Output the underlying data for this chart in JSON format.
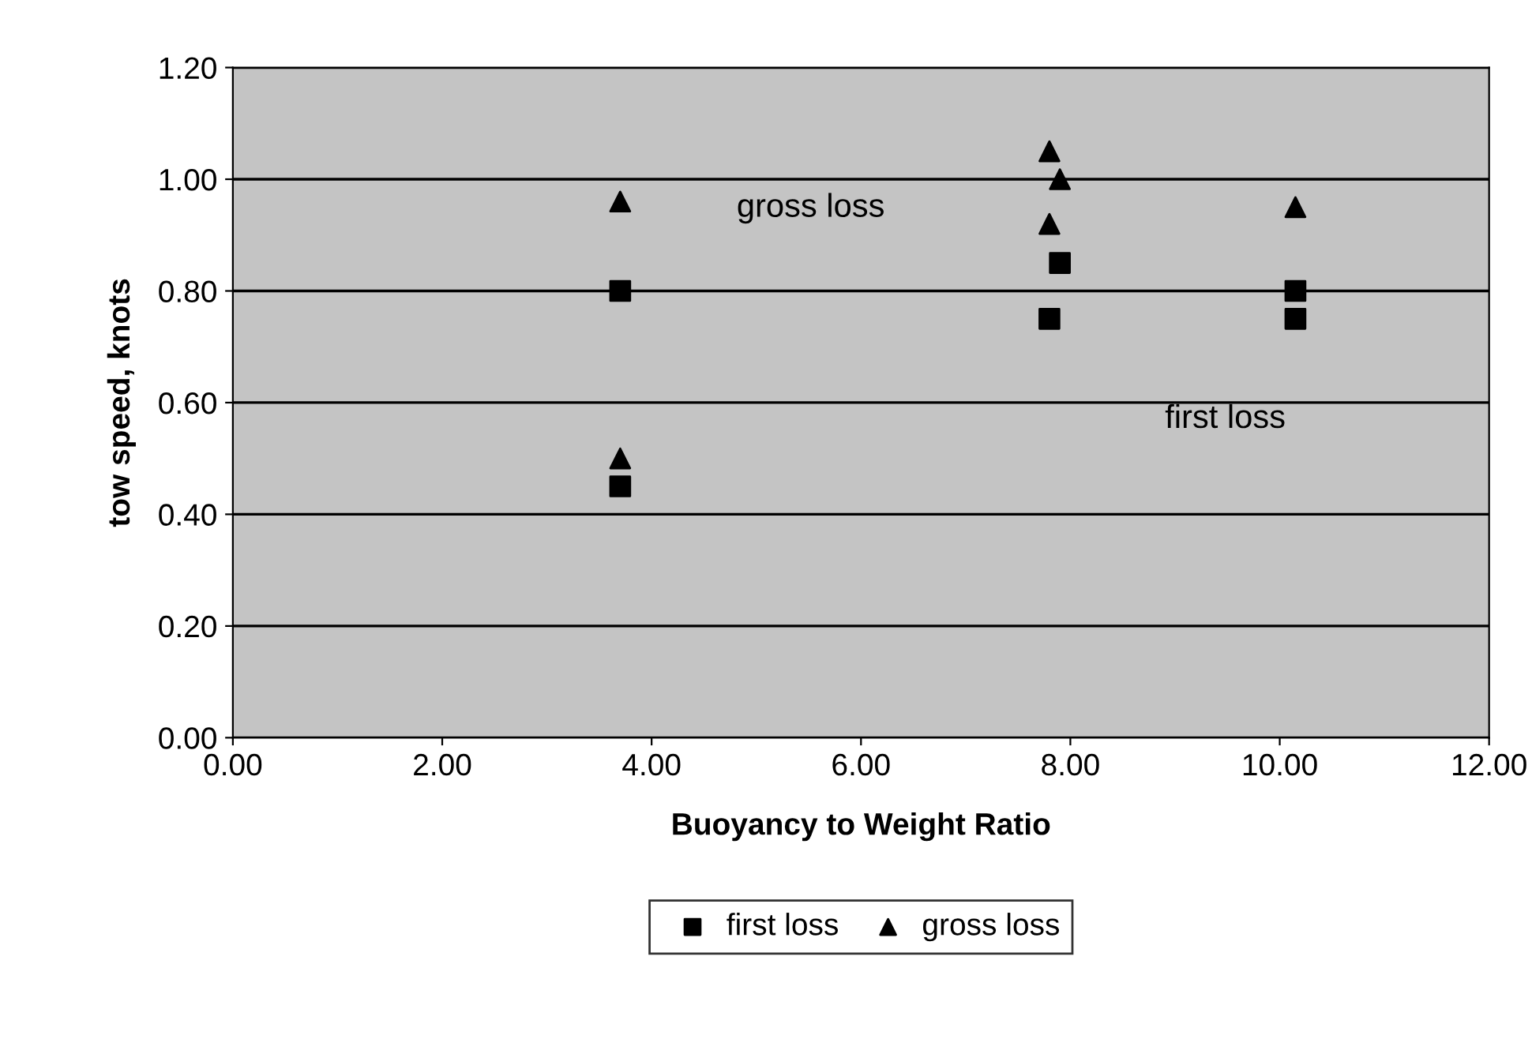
{
  "chart_data": {
    "type": "scatter",
    "xlabel": "Buoyancy to Weight Ratio",
    "ylabel": "tow speed, knots",
    "series": [
      {
        "name": "first loss",
        "color": "#000000",
        "marker": "square",
        "x": [
          3.7,
          3.7,
          7.9,
          7.8,
          10.15,
          10.15
        ],
        "values": [
          0.8,
          0.45,
          0.85,
          0.75,
          0.8,
          0.75
        ]
      },
      {
        "name": "gross loss",
        "color": "#000000",
        "marker": "triangle",
        "x": [
          3.7,
          3.7,
          7.8,
          7.9,
          7.8,
          10.15
        ],
        "values": [
          0.96,
          0.5,
          1.05,
          1.0,
          0.92,
          0.95
        ]
      }
    ],
    "annotations": [
      "gross loss",
      "first loss"
    ],
    "xlim": [
      0,
      12
    ],
    "xticks": [
      {
        "value": 0,
        "label": "0.00"
      },
      {
        "value": 2,
        "label": "2.00"
      },
      {
        "value": 4,
        "label": "4.00"
      },
      {
        "value": 6,
        "label": "6.00"
      },
      {
        "value": 8,
        "label": "8.00"
      },
      {
        "value": 10,
        "label": "10.00"
      },
      {
        "value": 12,
        "label": "12.00"
      }
    ],
    "ylim": [
      0,
      1.2
    ],
    "yticks": [
      {
        "value": 0,
        "label": "0.00"
      },
      {
        "value": 0.2,
        "label": "0.20"
      },
      {
        "value": 0.4,
        "label": "0.40"
      },
      {
        "value": 0.6,
        "label": "0.60"
      },
      {
        "value": 0.8,
        "label": "0.80"
      },
      {
        "value": 1.0,
        "label": "1.00"
      },
      {
        "value": 1.2,
        "label": "1.20"
      }
    ],
    "grid": "y",
    "legend": "bottom"
  }
}
